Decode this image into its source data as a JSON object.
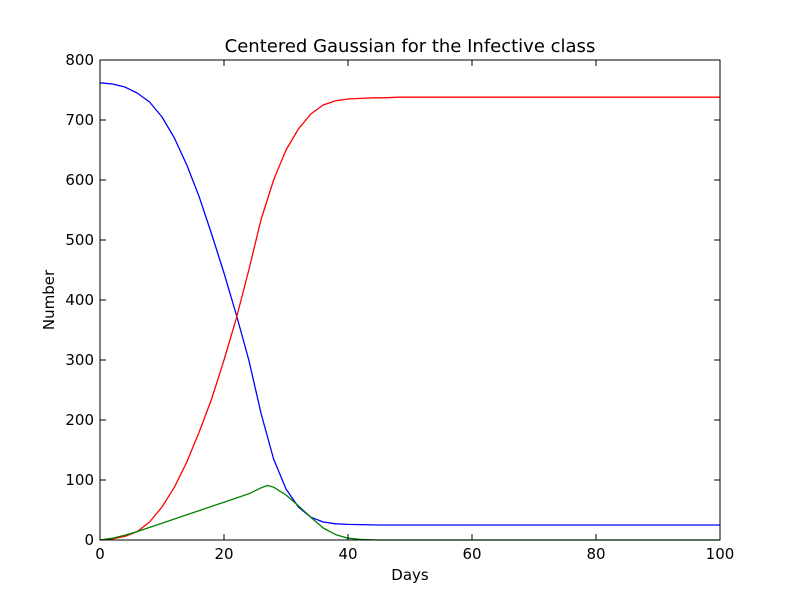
{
  "chart_data": {
    "type": "line",
    "title": "Centered Gaussian for the Infective class",
    "xlabel": "Days",
    "ylabel": "Number",
    "xlim": [
      0,
      100
    ],
    "ylim": [
      0,
      800
    ],
    "xticks": [
      0,
      20,
      40,
      60,
      80,
      100
    ],
    "yticks": [
      0,
      100,
      200,
      300,
      400,
      500,
      600,
      700,
      800
    ],
    "grid": false,
    "legend": "none",
    "series": [
      {
        "color": "#0000ff",
        "x": [
          0,
          2,
          4,
          6,
          8,
          10,
          12,
          14,
          16,
          18,
          20,
          22,
          24,
          26,
          28,
          30,
          32,
          34,
          36,
          38,
          40,
          45,
          50,
          60,
          70,
          80,
          90,
          100
        ],
        "y": [
          762,
          760,
          755,
          745,
          730,
          705,
          670,
          625,
          572,
          510,
          445,
          375,
          300,
          210,
          135,
          85,
          55,
          38,
          30,
          27,
          26,
          25,
          25,
          25,
          25,
          25,
          25,
          25
        ]
      },
      {
        "color": "#ff0000",
        "x": [
          0,
          2,
          4,
          6,
          8,
          10,
          12,
          14,
          16,
          18,
          20,
          22,
          24,
          26,
          28,
          30,
          32,
          34,
          36,
          38,
          40,
          42,
          44,
          46,
          48,
          50,
          60,
          70,
          80,
          90,
          100
        ],
        "y": [
          0,
          2,
          6,
          14,
          30,
          55,
          88,
          130,
          180,
          235,
          300,
          370,
          450,
          535,
          600,
          650,
          685,
          710,
          725,
          732,
          735,
          736,
          737,
          737,
          738,
          738,
          738,
          738,
          738,
          738,
          738
        ]
      },
      {
        "color": "#008000",
        "x": [
          0,
          2,
          4,
          6,
          8,
          10,
          12,
          14,
          16,
          18,
          20,
          22,
          24,
          25,
          26,
          27,
          28,
          30,
          32,
          34,
          36,
          38,
          40,
          42,
          45,
          50,
          60,
          70,
          80,
          90,
          100
        ],
        "y": [
          0,
          3,
          8,
          14,
          21,
          28,
          35,
          42,
          49,
          56,
          63,
          70,
          77,
          82,
          87,
          91,
          88,
          75,
          57,
          38,
          20,
          9,
          3,
          1,
          0,
          0,
          0,
          0,
          0,
          0,
          0
        ]
      }
    ]
  }
}
